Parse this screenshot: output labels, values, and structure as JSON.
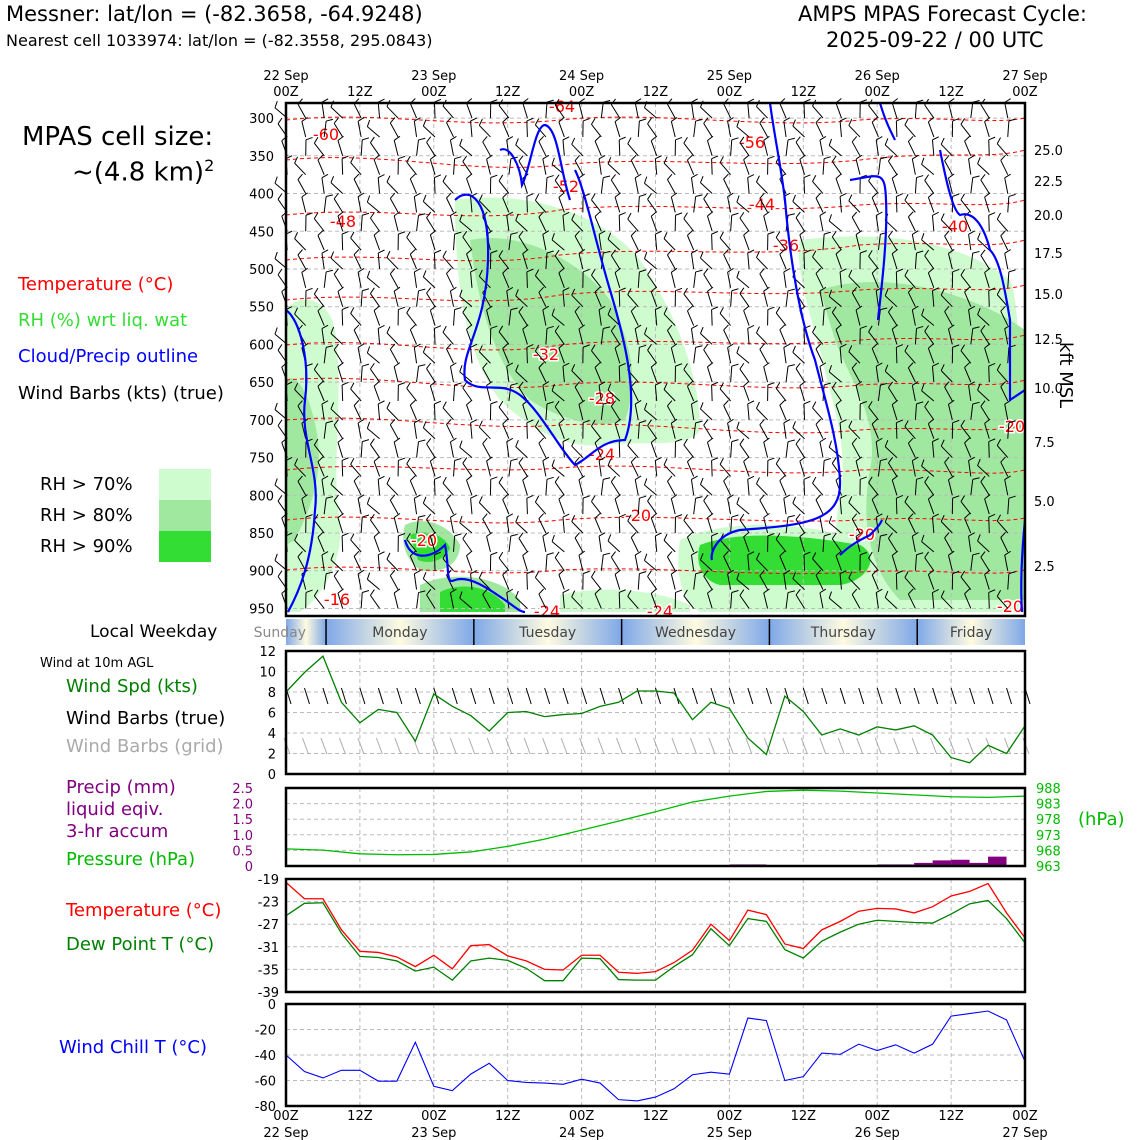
{
  "header": {
    "location": "Messner: lat/lon = (-82.3658, -64.9248)",
    "nearest_cell": "Nearest cell 1033974: lat/lon = (-82.3558, 295.0843)",
    "cycle_line1": "AMPS MPAS Forecast Cycle:",
    "cycle_line2": "2025-09-22 / 00 UTC"
  },
  "cell_size": {
    "line1": "MPAS cell size:",
    "line2": "~(4.8 km)",
    "exponent": "2"
  },
  "legend": {
    "temperature": "Temperature (°C)",
    "rh": "RH (%) wrt liq. wat",
    "cloud": "Cloud/Precip outline",
    "wind": "Wind Barbs (kts) (true)",
    "rh70": "RH > 70%",
    "rh80": "RH > 80%",
    "rh90": "RH > 90%"
  },
  "colors": {
    "temperature": "#ff0000",
    "rh_label": "#33dd33",
    "cloud": "#0000ff",
    "rh70": "#cffccf",
    "rh80": "#a0e8a0",
    "rh90": "#33dd33",
    "wind_speed": "#008000",
    "barbs_grid": "#aaaaaa",
    "precip": "#800080",
    "pressure": "#00bb00",
    "dewpoint": "#008000",
    "wind_chill": "#0000ff"
  },
  "time_axis": {
    "top_labels": [
      {
        "h": 0,
        "line1": "22 Sep",
        "line2": "00Z"
      },
      {
        "h": 12,
        "line1": "",
        "line2": "12Z"
      },
      {
        "h": 24,
        "line1": "23 Sep",
        "line2": "00Z"
      },
      {
        "h": 36,
        "line1": "",
        "line2": "12Z"
      },
      {
        "h": 48,
        "line1": "24 Sep",
        "line2": "00Z"
      },
      {
        "h": 60,
        "line1": "",
        "line2": "12Z"
      },
      {
        "h": 72,
        "line1": "25 Sep",
        "line2": "00Z"
      },
      {
        "h": 84,
        "line1": "",
        "line2": "12Z"
      },
      {
        "h": 96,
        "line1": "26 Sep",
        "line2": "00Z"
      },
      {
        "h": 108,
        "line1": "",
        "line2": "12Z"
      },
      {
        "h": 120,
        "line1": "27 Sep",
        "line2": "00Z"
      }
    ],
    "weekday_label": "Local Weekday",
    "weekdays": [
      "Sunday",
      "Monday",
      "Tuesday",
      "Wednesday",
      "Thursday",
      "Friday"
    ]
  },
  "cross_section": {
    "ylabel": "kft MSL",
    "pressure_ticks": [
      "300",
      "350",
      "400",
      "450",
      "500",
      "550",
      "600",
      "650",
      "700",
      "750",
      "800",
      "850",
      "900",
      "950"
    ],
    "kft_ticks": [
      "25.0",
      "22.5",
      "20.0",
      "17.5",
      "15.0",
      "12.5",
      "10.0",
      "7.5",
      "5.0",
      "2.5"
    ],
    "temp_contour_labels": [
      "-60",
      "-64",
      "-56",
      "-52",
      "-48",
      "-44",
      "-40",
      "-36",
      "-32",
      "-28",
      "-24",
      "-20",
      "-20",
      "-20",
      "-20",
      "-20",
      "-16",
      "-24",
      "-24"
    ]
  },
  "panel_labels": {
    "wind10": "Wind at 10m AGL",
    "wind_speed": "Wind Spd (kts)",
    "wind_barbs": "Wind Barbs (true)",
    "wind_barbs_grid": "Wind Barbs (grid)",
    "precip1": "Precip (mm)",
    "precip2": "liquid eqiv.",
    "precip3": "3-hr accum",
    "pressure": "Pressure (hPa)",
    "hpa": "(hPa)",
    "temperature": "Temperature (°C)",
    "dewpoint": "Dew Point T (°C)",
    "wind_chill": "Wind Chill T (°C)"
  },
  "chart_data": [
    {
      "type": "line",
      "panel": "wind_speed",
      "ylim": [
        0,
        12
      ],
      "yticks": [
        "0",
        "2",
        "4",
        "6",
        "8",
        "10",
        "12"
      ],
      "x_hours": [
        0,
        3,
        6,
        9,
        12,
        15,
        18,
        21,
        24,
        27,
        30,
        33,
        36,
        39,
        42,
        45,
        48,
        51,
        54,
        57,
        60,
        63,
        66,
        69,
        72,
        75,
        78,
        81,
        84,
        87,
        90,
        93,
        96,
        99,
        102,
        105,
        108,
        111,
        114,
        117,
        120
      ],
      "series": [
        {
          "values": [
            8.0,
            9.9,
            11.5,
            7.0,
            5.0,
            6.3,
            6.0,
            3.2,
            7.8,
            6.6,
            5.7,
            4.2,
            6.0,
            6.1,
            5.6,
            5.8,
            5.9,
            6.6,
            7.0,
            8.1,
            8.1,
            7.9,
            5.3,
            7.0,
            6.4,
            3.5,
            1.9,
            7.6,
            6.1,
            3.8,
            4.4,
            3.8,
            4.6,
            4.3,
            4.7,
            3.8,
            1.6,
            1.1,
            2.8,
            2.0,
            4.7
          ]
        }
      ]
    },
    {
      "type": "line",
      "panel": "pressure",
      "ylim": [
        963,
        988
      ],
      "yticks": [
        "963",
        "968",
        "973",
        "978",
        "983",
        "988"
      ],
      "x_hours": [
        0,
        6,
        12,
        18,
        24,
        30,
        36,
        42,
        48,
        54,
        60,
        66,
        72,
        78,
        84,
        90,
        96,
        102,
        108,
        114,
        120
      ],
      "series": [
        {
          "values": [
            968.5,
            968.1,
            966.9,
            966.6,
            966.7,
            967.5,
            969.3,
            971.6,
            974.5,
            977.4,
            980.4,
            983.5,
            985.4,
            986.9,
            987.3,
            987.0,
            986.4,
            985.8,
            985.2,
            985.0,
            985.4
          ]
        }
      ]
    },
    {
      "type": "bar",
      "panel": "precip",
      "ylim": [
        0,
        2.5
      ],
      "yticks": [
        "0",
        "0.5",
        "1.0",
        "1.5",
        "2.0",
        "2.5"
      ],
      "x_hours": [
        72,
        75,
        96,
        99,
        102,
        105,
        108,
        111,
        114
      ],
      "values": [
        0.05,
        0.05,
        0.05,
        0.05,
        0.1,
        0.18,
        0.2,
        0.1,
        0.3
      ]
    },
    {
      "type": "line",
      "panel": "temperature_dewpoint",
      "ylim": [
        -39,
        -19
      ],
      "yticks": [
        "-19",
        "-23",
        "-27",
        "-31",
        "-35",
        "-39"
      ],
      "x_hours": [
        0,
        3,
        6,
        9,
        12,
        15,
        18,
        21,
        24,
        27,
        30,
        33,
        36,
        39,
        42,
        45,
        48,
        51,
        54,
        57,
        60,
        63,
        66,
        69,
        72,
        75,
        78,
        81,
        84,
        87,
        90,
        93,
        96,
        99,
        102,
        105,
        108,
        111,
        114,
        117,
        120
      ],
      "series": [
        {
          "name": "Temperature (°C)",
          "values": [
            -19.6,
            -22.5,
            -22.5,
            -28.0,
            -31.8,
            -32.0,
            -32.8,
            -34.5,
            -32.5,
            -34.9,
            -30.8,
            -30.6,
            -32.6,
            -33.5,
            -35.0,
            -35.1,
            -32.5,
            -32.5,
            -35.5,
            -35.7,
            -35.4,
            -33.8,
            -31.6,
            -27.0,
            -29.9,
            -24.5,
            -25.3,
            -30.5,
            -31.3,
            -28.0,
            -26.5,
            -24.7,
            -24.2,
            -24.3,
            -25.0,
            -23.9,
            -22.0,
            -21.2,
            -19.8,
            -25.0,
            -29.4
          ]
        },
        {
          "name": "Dew Point T (°C)",
          "values": [
            -25.5,
            -23.3,
            -23.2,
            -28.6,
            -32.7,
            -32.9,
            -33.5,
            -35.3,
            -34.6,
            -36.9,
            -33.5,
            -33.0,
            -33.4,
            -34.8,
            -37.0,
            -37.0,
            -33.0,
            -33.1,
            -36.8,
            -36.9,
            -36.9,
            -34.5,
            -32.4,
            -27.8,
            -30.8,
            -26.0,
            -26.5,
            -31.5,
            -33.0,
            -30.0,
            -28.4,
            -27.0,
            -26.3,
            -26.5,
            -26.7,
            -26.8,
            -25.2,
            -23.4,
            -22.8,
            -26.0,
            -30.3
          ]
        }
      ]
    },
    {
      "type": "line",
      "panel": "wind_chill",
      "ylim": [
        -80,
        0
      ],
      "yticks": [
        "0",
        "-20",
        "-40",
        "-60",
        "-80"
      ],
      "x_hours": [
        0,
        3,
        6,
        9,
        12,
        15,
        18,
        21,
        24,
        27,
        30,
        33,
        36,
        39,
        42,
        45,
        48,
        51,
        54,
        57,
        60,
        63,
        66,
        69,
        72,
        75,
        78,
        81,
        84,
        87,
        90,
        93,
        96,
        99,
        102,
        105,
        108,
        111,
        114,
        117,
        120
      ],
      "series": [
        {
          "values": [
            -40,
            -53,
            -58,
            -52,
            -52,
            -60.5,
            -60.5,
            -30,
            -64.5,
            -68,
            -55,
            -46.5,
            -60,
            -61.5,
            -62,
            -63,
            -59,
            -62,
            -75,
            -76,
            -73,
            -66.5,
            -55.5,
            -53.5,
            -55,
            -11,
            -13,
            -60,
            -57,
            -38.5,
            -39.5,
            -31.5,
            -36.5,
            -32,
            -38.5,
            -31.5,
            -9.5,
            -7.5,
            -5.5,
            -12.5,
            -45
          ]
        }
      ]
    }
  ]
}
